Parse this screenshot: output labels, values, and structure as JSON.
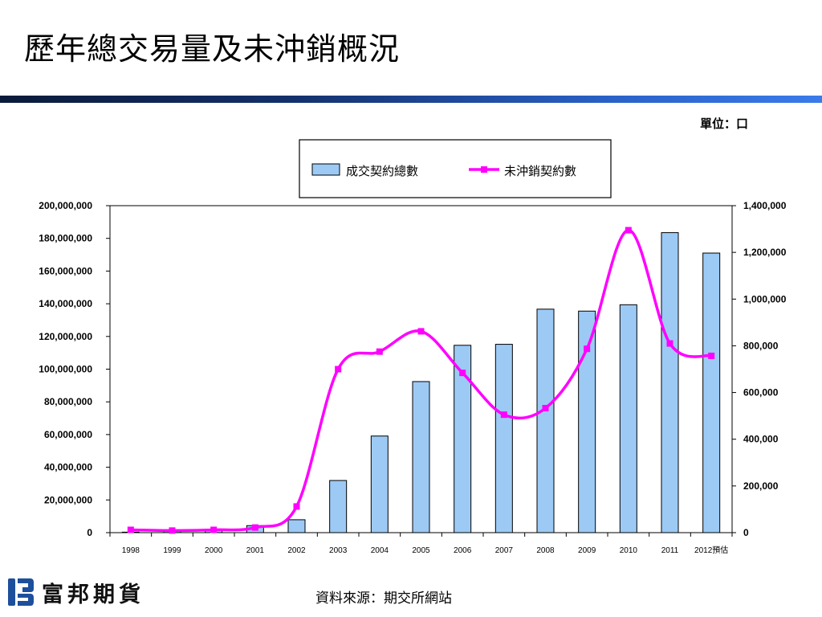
{
  "slide": {
    "title": "歷年總交易量及未沖銷概況",
    "unit": "單位：口",
    "source": "資料來源：期交所網站",
    "brand": "富邦期貨"
  },
  "chart_data": {
    "type": "bar",
    "categories": [
      "1998",
      "1999",
      "2000",
      "2001",
      "2002",
      "2003",
      "2004",
      "2005",
      "2006",
      "2007",
      "2008",
      "2009",
      "2010",
      "2011",
      "2012預估"
    ],
    "series": [
      {
        "name": "成交契約總數",
        "type": "bar",
        "axis": "left",
        "color": "#9ccaf5",
        "values": [
          300000,
          1100000,
          1500000,
          4300000,
          7900000,
          31900000,
          59100000,
          92400000,
          114600000,
          115200000,
          136700000,
          135500000,
          139400000,
          183500000,
          171000000
        ]
      },
      {
        "name": "未沖銷契約數",
        "type": "line",
        "axis": "right",
        "color": "#ff00ff",
        "values": [
          12000,
          9000,
          12000,
          22000,
          112000,
          700000,
          775000,
          862000,
          684000,
          505000,
          533000,
          787000,
          1295000,
          810000,
          757000
        ]
      }
    ],
    "y_left": {
      "min": 0,
      "max": 200000000,
      "ticks": [
        "0",
        "20,000,000",
        "40,000,000",
        "60,000,000",
        "80,000,000",
        "100,000,000",
        "120,000,000",
        "140,000,000",
        "160,000,000",
        "180,000,000",
        "200,000,000"
      ]
    },
    "y_right": {
      "min": 0,
      "max": 1400000,
      "ticks": [
        "0",
        "200,000",
        "400,000",
        "600,000",
        "800,000",
        "1,000,000",
        "1,200,000",
        "1,400,000"
      ]
    },
    "legend": {
      "position": "top-center"
    },
    "grid": false
  }
}
